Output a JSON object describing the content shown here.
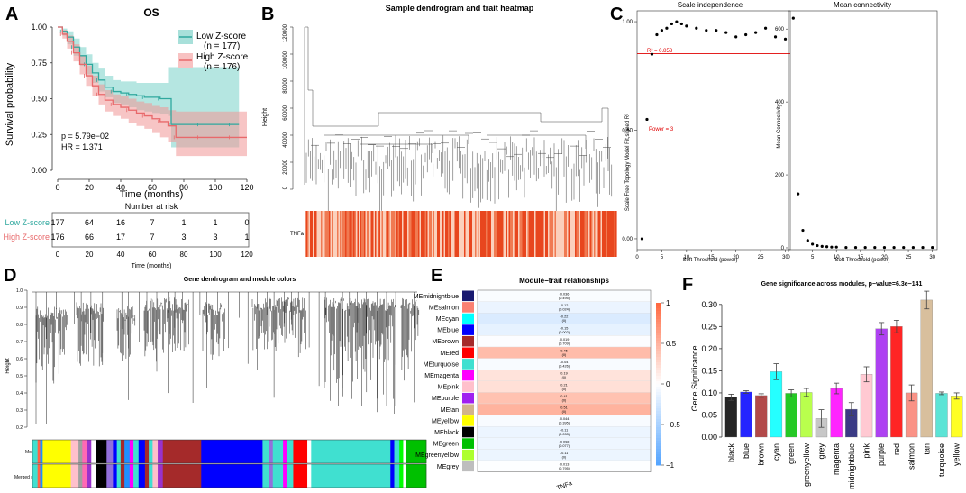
{
  "panels": {
    "A": {
      "letter": "A",
      "title": "OS",
      "legend": [
        {
          "label": "Low Z-score",
          "n": "(n = 177)",
          "color": "#2fa89e"
        },
        {
          "label": "High Z-score",
          "n": "(n = 176)",
          "color": "#e8696b"
        }
      ],
      "ylabel": "Survival probability",
      "xlabel": "Time (months)",
      "yticks": [
        "1.00",
        "0.75",
        "0.50",
        "0.25",
        "0.00"
      ],
      "xticks": [
        "0",
        "20",
        "40",
        "60",
        "80",
        "100",
        "120"
      ],
      "pvalue": "p = 5.79e−02",
      "hr": "HR = 1.371",
      "chart_data": {
        "type": "line",
        "x_range": [
          0,
          120
        ],
        "y_range": [
          0,
          1
        ],
        "series": [
          {
            "name": "Low Z-score",
            "x": [
              0,
              3,
              6,
              10,
              14,
              18,
              22,
              26,
              30,
              35,
              40,
              45,
              50,
              55,
              60,
              65,
              70,
              72,
              80,
              90,
              100,
              110,
              115
            ],
            "y": [
              1.0,
              0.97,
              0.93,
              0.86,
              0.8,
              0.74,
              0.68,
              0.63,
              0.58,
              0.55,
              0.54,
              0.53,
              0.52,
              0.51,
              0.51,
              0.5,
              0.5,
              0.32,
              0.32,
              0.32,
              0.32,
              0.32,
              0.32
            ],
            "lo": [
              1.0,
              0.94,
              0.88,
              0.8,
              0.73,
              0.67,
              0.61,
              0.55,
              0.51,
              0.47,
              0.46,
              0.44,
              0.42,
              0.41,
              0.4,
              0.39,
              0.38,
              0.16,
              0.16,
              0.16,
              0.16,
              0.16,
              0.16
            ],
            "hi": [
              1.0,
              0.99,
              0.97,
              0.92,
              0.86,
              0.81,
              0.75,
              0.71,
              0.66,
              0.63,
              0.62,
              0.62,
              0.61,
              0.61,
              0.61,
              0.61,
              0.72,
              0.72,
              0.72,
              0.72,
              0.72,
              0.72,
              0.72
            ]
          },
          {
            "name": "High Z-score",
            "x": [
              0,
              3,
              6,
              10,
              14,
              18,
              22,
              26,
              30,
              35,
              40,
              45,
              50,
              55,
              60,
              65,
              70,
              75,
              80,
              90,
              100,
              110,
              120
            ],
            "y": [
              1.0,
              0.95,
              0.9,
              0.82,
              0.74,
              0.66,
              0.59,
              0.53,
              0.49,
              0.46,
              0.44,
              0.42,
              0.4,
              0.38,
              0.36,
              0.34,
              0.31,
              0.23,
              0.23,
              0.23,
              0.23,
              0.23,
              0.23
            ],
            "lo": [
              1.0,
              0.92,
              0.85,
              0.76,
              0.67,
              0.59,
              0.52,
              0.46,
              0.41,
              0.38,
              0.36,
              0.33,
              0.31,
              0.29,
              0.26,
              0.23,
              0.2,
              0.1,
              0.1,
              0.1,
              0.1,
              0.1,
              0.1
            ],
            "hi": [
              1.0,
              0.98,
              0.94,
              0.88,
              0.8,
              0.73,
              0.66,
              0.6,
              0.56,
              0.53,
              0.52,
              0.5,
              0.48,
              0.47,
              0.45,
              0.44,
              0.42,
              0.41,
              0.41,
              0.41,
              0.41,
              0.41,
              0.41
            ]
          }
        ]
      },
      "risk_table": {
        "title": "Number at risk",
        "rows": [
          {
            "label": "Low Z-score",
            "values": [
              "177",
              "64",
              "16",
              "7",
              "1",
              "1",
              "0"
            ]
          },
          {
            "label": "High Z-score",
            "values": [
              "176",
              "66",
              "17",
              "7",
              "3",
              "3",
              "1"
            ]
          }
        ],
        "xlabel": "Time (months)"
      }
    },
    "B": {
      "letter": "B",
      "title": "Sample dendrogram and trait heatmap",
      "ylabel": "Height",
      "yticks": [
        "120000",
        "100000",
        "80000",
        "60000",
        "40000",
        "20000",
        "0"
      ],
      "trait": "TNFa"
    },
    "C": {
      "letter": "C",
      "left": {
        "title": "Scale independence",
        "ylabel": "Scale Free Topology Model Fit,signed R²",
        "xlabel": "Soft Threshold (power)",
        "yticks": [
          "1.00",
          "0.50",
          "0.00"
        ],
        "xticks": [
          "0",
          "5",
          "10",
          "15",
          "20",
          "25",
          "30"
        ],
        "r2_label": "R² = 0.853",
        "power_label": "Power = 3",
        "chart_data": {
          "type": "scatter",
          "x": [
            1,
            2,
            3,
            4,
            5,
            6,
            7,
            8,
            9,
            10,
            12,
            14,
            16,
            18,
            20,
            22,
            24,
            26,
            28,
            30
          ],
          "y": [
            0.0,
            0.55,
            0.85,
            0.94,
            0.96,
            0.97,
            0.99,
            1.0,
            0.99,
            0.98,
            0.97,
            0.96,
            0.96,
            0.95,
            0.93,
            0.94,
            0.95,
            0.97,
            0.93,
            0.92
          ],
          "xlim": [
            0,
            31
          ],
          "ylim": [
            -0.05,
            1.05
          ],
          "hline": 0.853,
          "vline": 3
        }
      },
      "right": {
        "title": "Mean connectivity",
        "ylabel": "Mean Connectivity",
        "xlabel": "Soft Threshold (power)",
        "yticks": [
          "600",
          "400",
          "200",
          "0"
        ],
        "xticks": [
          "0",
          "5",
          "10",
          "15",
          "20",
          "25",
          "30"
        ],
        "chart_data": {
          "type": "scatter",
          "x": [
            1,
            2,
            3,
            4,
            5,
            6,
            7,
            8,
            9,
            10,
            12,
            14,
            16,
            18,
            20,
            22,
            24,
            26,
            28,
            30
          ],
          "y": [
            630,
            148,
            48,
            20,
            10,
            6,
            4,
            3,
            2,
            2,
            1,
            1,
            1,
            1,
            1,
            1,
            1,
            1,
            1,
            1
          ],
          "xlim": [
            0,
            31
          ],
          "ylim": [
            -5,
            650
          ]
        }
      }
    },
    "D": {
      "letter": "D",
      "title": "Gene dendrogram and module colors",
      "ylabel": "Height",
      "yticks": [
        "1.0",
        "0.9",
        "0.8",
        "0.7",
        "0.6",
        "0.5",
        "0.4",
        "0.3",
        "0.2"
      ],
      "row_labels": [
        "Module",
        "Merged module"
      ],
      "module_blocks": [
        {
          "color": "#40e0d0",
          "w": 4
        },
        {
          "color": "#ff6347",
          "w": 2
        },
        {
          "color": "#1e90ff",
          "w": 2
        },
        {
          "color": "#ffff00",
          "w": 22
        },
        {
          "color": "#ffc0cb",
          "w": 6
        },
        {
          "color": "#a0a0a0",
          "w": 3
        },
        {
          "color": "#ff69b4",
          "w": 4
        },
        {
          "color": "#9932cc",
          "w": 3
        },
        {
          "color": "#ffffff",
          "w": 4
        },
        {
          "color": "#000000",
          "w": 8
        },
        {
          "color": "#9370db",
          "w": 5
        },
        {
          "color": "#0000ff",
          "w": 3
        },
        {
          "color": "#40e0d0",
          "w": 3
        },
        {
          "color": "#a52a2a",
          "w": 3
        },
        {
          "color": "#1e90ff",
          "w": 4
        },
        {
          "color": "#ff00ff",
          "w": 3
        },
        {
          "color": "#40e0d0",
          "w": 4
        },
        {
          "color": "#0000ff",
          "w": 5
        },
        {
          "color": "#a52a2a",
          "w": 3
        },
        {
          "color": "#40e0d0",
          "w": 3
        },
        {
          "color": "#ffc0cb",
          "w": 4
        },
        {
          "color": "#9932cc",
          "w": 4
        },
        {
          "color": "#a52a2a",
          "w": 30
        },
        {
          "color": "#0000ff",
          "w": 48
        },
        {
          "color": "#40e0d0",
          "w": 5
        },
        {
          "color": "#9370db",
          "w": 3
        },
        {
          "color": "#40e0d0",
          "w": 8
        },
        {
          "color": "#ff00ff",
          "w": 3
        },
        {
          "color": "#40e0d0",
          "w": 5
        },
        {
          "color": "#ff0000",
          "w": 11
        },
        {
          "color": "#ffffff",
          "w": 3
        },
        {
          "color": "#40e0d0",
          "w": 62
        },
        {
          "color": "#0000ff",
          "w": 3
        },
        {
          "color": "#40e0d0",
          "w": 4
        },
        {
          "color": "#00ff00",
          "w": 3
        },
        {
          "color": "#ffffff",
          "w": 2
        },
        {
          "color": "#00c000",
          "w": 16
        }
      ],
      "merged_blocks": [
        {
          "color": "#40e0d0",
          "w": 4
        },
        {
          "color": "#ff6347",
          "w": 2
        },
        {
          "color": "#1e90ff",
          "w": 2
        },
        {
          "color": "#ffff00",
          "w": 22
        },
        {
          "color": "#ffc0cb",
          "w": 6
        },
        {
          "color": "#a0a0a0",
          "w": 3
        },
        {
          "color": "#ff69b4",
          "w": 4
        },
        {
          "color": "#9932cc",
          "w": 3
        },
        {
          "color": "#ffffff",
          "w": 4
        },
        {
          "color": "#000000",
          "w": 8
        },
        {
          "color": "#9370db",
          "w": 5
        },
        {
          "color": "#0000ff",
          "w": 3
        },
        {
          "color": "#40e0d0",
          "w": 3
        },
        {
          "color": "#a52a2a",
          "w": 3
        },
        {
          "color": "#1e90ff",
          "w": 4
        },
        {
          "color": "#ff00ff",
          "w": 3
        },
        {
          "color": "#40e0d0",
          "w": 4
        },
        {
          "color": "#0000ff",
          "w": 5
        },
        {
          "color": "#a52a2a",
          "w": 3
        },
        {
          "color": "#40e0d0",
          "w": 3
        },
        {
          "color": "#ffc0cb",
          "w": 4
        },
        {
          "color": "#9932cc",
          "w": 4
        },
        {
          "color": "#a52a2a",
          "w": 30
        },
        {
          "color": "#0000ff",
          "w": 48
        },
        {
          "color": "#40e0d0",
          "w": 5
        },
        {
          "color": "#9370db",
          "w": 3
        },
        {
          "color": "#40e0d0",
          "w": 8
        },
        {
          "color": "#ff00ff",
          "w": 3
        },
        {
          "color": "#40e0d0",
          "w": 5
        },
        {
          "color": "#ff0000",
          "w": 11
        },
        {
          "color": "#ffffff",
          "w": 3
        },
        {
          "color": "#40e0d0",
          "w": 62
        },
        {
          "color": "#0000ff",
          "w": 3
        },
        {
          "color": "#40e0d0",
          "w": 4
        },
        {
          "color": "#00ff00",
          "w": 3
        },
        {
          "color": "#ffffff",
          "w": 2
        },
        {
          "color": "#00c000",
          "w": 16
        }
      ]
    },
    "E": {
      "letter": "E",
      "title": "Module−trait relationships",
      "trait": "TNFa",
      "scale_ticks": [
        "1",
        "0.5",
        "0",
        "−0.5",
        "−1"
      ],
      "chart_data": {
        "type": "heatmap",
        "rows": [
          {
            "name": "MEmidnightblue",
            "color": "#191970",
            "r": -0.036,
            "p": "(0.495)"
          },
          {
            "name": "MEsalmon",
            "color": "#fa8072",
            "r": -0.12,
            "p": "(0.024)"
          },
          {
            "name": "MEcyan",
            "color": "#00ffff",
            "r": -0.22,
            "p": "(0)"
          },
          {
            "name": "MEblue",
            "color": "#0000ff",
            "r": -0.15,
            "p": "(0.002)"
          },
          {
            "name": "MEbrown",
            "color": "#a52a2a",
            "r": -0.019,
            "p": "(0.709)"
          },
          {
            "name": "MEred",
            "color": "#ff0000",
            "r": 0.45,
            "p": "(0)"
          },
          {
            "name": "MEturquoise",
            "color": "#40e0d0",
            "r": -0.04,
            "p": "(0.426)"
          },
          {
            "name": "MEmagenta",
            "color": "#ff00ff",
            "r": 0.19,
            "p": "(0)"
          },
          {
            "name": "MEpink",
            "color": "#ffc0cb",
            "r": 0.21,
            "p": "(0)"
          },
          {
            "name": "MEpurple",
            "color": "#a020f0",
            "r": 0.41,
            "p": "(0)"
          },
          {
            "name": "MEtan",
            "color": "#d2b48c",
            "r": 0.51,
            "p": "(0)"
          },
          {
            "name": "MEyellow",
            "color": "#ffff00",
            "r": -0.044,
            "p": "(0.395)"
          },
          {
            "name": "MEblack",
            "color": "#000000",
            "r": -0.11,
            "p": "(0.033)"
          },
          {
            "name": "MEgreen",
            "color": "#00c000",
            "r": -0.098,
            "p": "(0.077)"
          },
          {
            "name": "MEgreenyellow",
            "color": "#adff2f",
            "r": -0.11,
            "p": "(0)"
          },
          {
            "name": "MEgrey",
            "color": "#bebebe",
            "r": -0.013,
            "p": "(0.795)"
          }
        ]
      }
    },
    "F": {
      "letter": "F",
      "title": "Gene significance across modules, p−value=6.3e−141",
      "ylabel": "Gene Significance",
      "yticks": [
        "0.30",
        "0.25",
        "0.20",
        "0.15",
        "0.10",
        "0.05",
        "0.00"
      ],
      "chart_data": {
        "type": "bar",
        "ylim": [
          0,
          0.32
        ],
        "categories": [
          "black",
          "blue",
          "brown",
          "cyan",
          "green",
          "greenyellow",
          "grey",
          "magenta",
          "midnightblue",
          "pink",
          "purple",
          "red",
          "salmon",
          "tan",
          "turquoise",
          "yellow"
        ],
        "colors": [
          "#000000",
          "#0000ff",
          "#a52a2a",
          "#00ffff",
          "#00c000",
          "#adff2f",
          "#bebebe",
          "#ff00ff",
          "#191970",
          "#ffc0cb",
          "#a020f0",
          "#ff0000",
          "#fa8072",
          "#d2b48c",
          "#40e0d0",
          "#ffff00"
        ],
        "values": [
          0.09,
          0.102,
          0.094,
          0.148,
          0.099,
          0.101,
          0.042,
          0.11,
          0.063,
          0.142,
          0.245,
          0.25,
          0.1,
          0.31,
          0.099,
          0.093
        ],
        "errors": [
          0.007,
          0.003,
          0.004,
          0.018,
          0.008,
          0.009,
          0.02,
          0.012,
          0.015,
          0.017,
          0.014,
          0.014,
          0.018,
          0.02,
          0.003,
          0.007
        ]
      }
    }
  }
}
